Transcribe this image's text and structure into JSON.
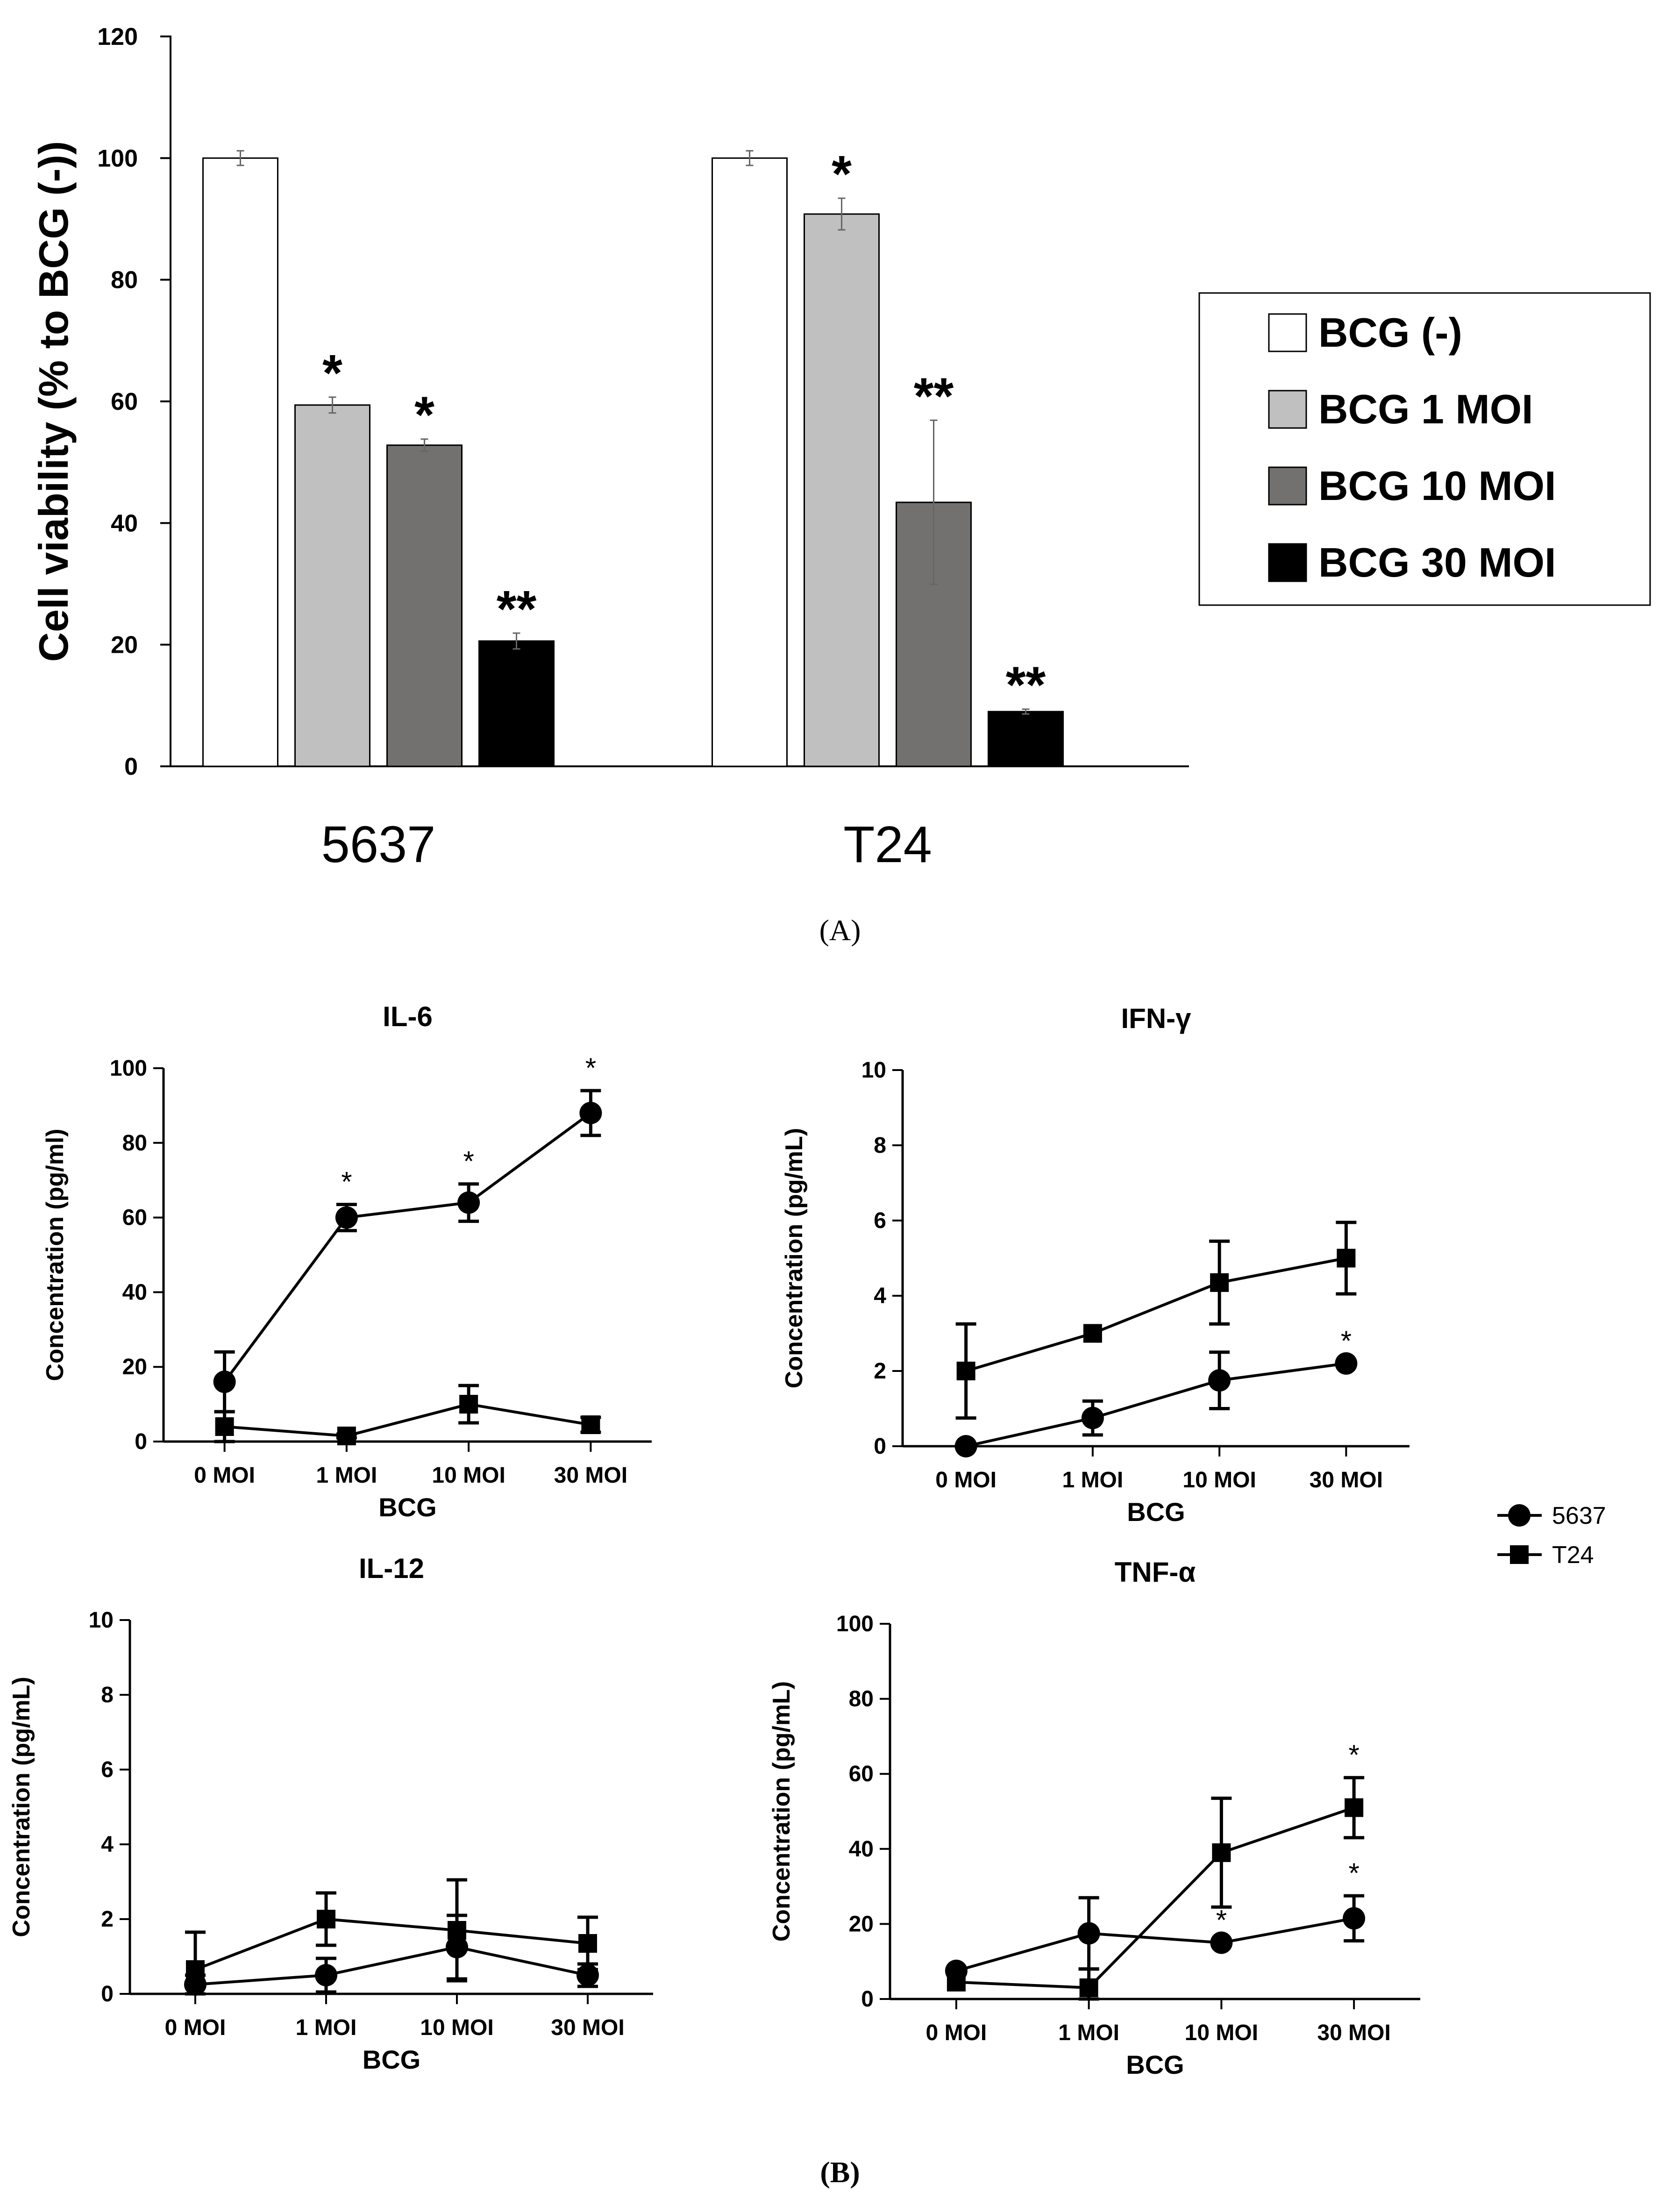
{
  "chart_data": [
    {
      "id": "panel-a",
      "type": "bar",
      "panel_label": {
        "open": "(",
        "letter": "A",
        "close": ")"
      },
      "title": "",
      "xlabel": "",
      "ylabel": "Cell viability (% to BCG (-))",
      "ylim": [
        0,
        120
      ],
      "yticks": [
        0,
        20,
        40,
        60,
        80,
        100,
        120
      ],
      "grid": false,
      "legend_position": "right",
      "categories": [
        "5637",
        "T24"
      ],
      "series": [
        {
          "name": "BCG (-)",
          "color": "#ffffff",
          "values": [
            100,
            100
          ],
          "errors": [
            1.2,
            1.2
          ],
          "annotations": [
            "",
            ""
          ]
        },
        {
          "name": "BCG 1 MOI",
          "color": "#c0c0c0",
          "values": [
            59.4,
            90.8
          ],
          "errors": [
            1.3,
            2.6
          ],
          "annotations": [
            "*",
            "*"
          ]
        },
        {
          "name": "BCG 10 MOI",
          "color": "#737070",
          "values": [
            52.8,
            43.4
          ],
          "errors": [
            1.0,
            13.5
          ],
          "annotations": [
            "*",
            "**"
          ]
        },
        {
          "name": "BCG 30 MOI",
          "color": "#000000",
          "values": [
            20.6,
            9.0
          ],
          "errors": [
            1.3,
            0.4
          ],
          "annotations": [
            "**",
            "**"
          ]
        }
      ]
    },
    {
      "id": "il6",
      "type": "line",
      "title": "IL-6",
      "xlabel": "BCG",
      "ylabel": "Concentration (pg/ml)",
      "categories": [
        "0 MOI",
        "1 MOI",
        "10 MOI",
        "30 MOI"
      ],
      "ylim": [
        0,
        100
      ],
      "yticks": [
        0,
        20,
        40,
        60,
        80,
        100
      ],
      "series": [
        {
          "name": "5637",
          "marker": "circle",
          "values": [
            16,
            60,
            64,
            88
          ],
          "errors": [
            8,
            3.5,
            5,
            6
          ],
          "annotations": [
            "",
            "*",
            "*",
            "*"
          ]
        },
        {
          "name": "T24",
          "marker": "square",
          "values": [
            4,
            1.5,
            10,
            4.5
          ],
          "errors": [
            4,
            0.5,
            5,
            2
          ],
          "annotations": [
            "",
            "",
            "",
            ""
          ]
        }
      ]
    },
    {
      "id": "ifng",
      "type": "line",
      "title": "IFN-γ",
      "xlabel": "BCG",
      "ylabel": "Concentration (pg/mL)",
      "categories": [
        "0 MOI",
        "1 MOI",
        "10 MOI",
        "30 MOI"
      ],
      "ylim": [
        0,
        10
      ],
      "yticks": [
        0,
        2,
        4,
        6,
        8,
        10
      ],
      "series": [
        {
          "name": "5637",
          "marker": "circle",
          "values": [
            0,
            0.75,
            1.75,
            2.2
          ],
          "errors": [
            0,
            0.45,
            0.75,
            0
          ],
          "annotations": [
            "",
            "",
            "",
            "*"
          ]
        },
        {
          "name": "T24",
          "marker": "square",
          "values": [
            2,
            3,
            4.35,
            5
          ],
          "errors": [
            1.25,
            0,
            1.1,
            0.95
          ],
          "annotations": [
            "",
            "",
            "",
            ""
          ]
        }
      ]
    },
    {
      "id": "il12",
      "type": "line",
      "title": "IL-12",
      "xlabel": "BCG",
      "ylabel": "Concentration (pg/mL)",
      "categories": [
        "0 MOI",
        "1 MOI",
        "10 MOI",
        "30 MOI"
      ],
      "ylim": [
        0,
        10
      ],
      "yticks": [
        0,
        2,
        4,
        6,
        8,
        10
      ],
      "series": [
        {
          "name": "5637",
          "marker": "circle",
          "values": [
            0.25,
            0.5,
            1.25,
            0.5
          ],
          "errors": [
            0.25,
            0.45,
            0.85,
            0.3
          ],
          "annotations": [
            "",
            "",
            "",
            ""
          ]
        },
        {
          "name": "T24",
          "marker": "square",
          "values": [
            0.65,
            2.0,
            1.7,
            1.35
          ],
          "errors": [
            1.0,
            0.7,
            1.35,
            0.7
          ],
          "annotations": [
            "",
            "",
            "",
            ""
          ]
        }
      ]
    },
    {
      "id": "tnfa",
      "type": "line",
      "title": "TNF-α",
      "xlabel": "BCG",
      "ylabel": "Concentration (pg/mL)",
      "categories": [
        "0 MOI",
        "1 MOI",
        "10 MOI",
        "30 MOI"
      ],
      "ylim": [
        0,
        100
      ],
      "yticks": [
        0,
        20,
        40,
        60,
        80,
        100
      ],
      "legend": [
        "5637",
        "T24"
      ],
      "series": [
        {
          "name": "5637",
          "marker": "circle",
          "values": [
            7.5,
            17.5,
            15,
            21.5
          ],
          "errors": [
            0,
            9.5,
            0,
            6
          ],
          "annotations": [
            "",
            "",
            "*",
            "*"
          ]
        },
        {
          "name": "T24",
          "marker": "square",
          "values": [
            4.5,
            3,
            39,
            51
          ],
          "errors": [
            0,
            5,
            14.5,
            8
          ],
          "annotations": [
            "",
            "",
            "",
            "*"
          ]
        }
      ]
    }
  ],
  "panel_b_label": {
    "open": "(",
    "letter": "B",
    "close": ")"
  }
}
